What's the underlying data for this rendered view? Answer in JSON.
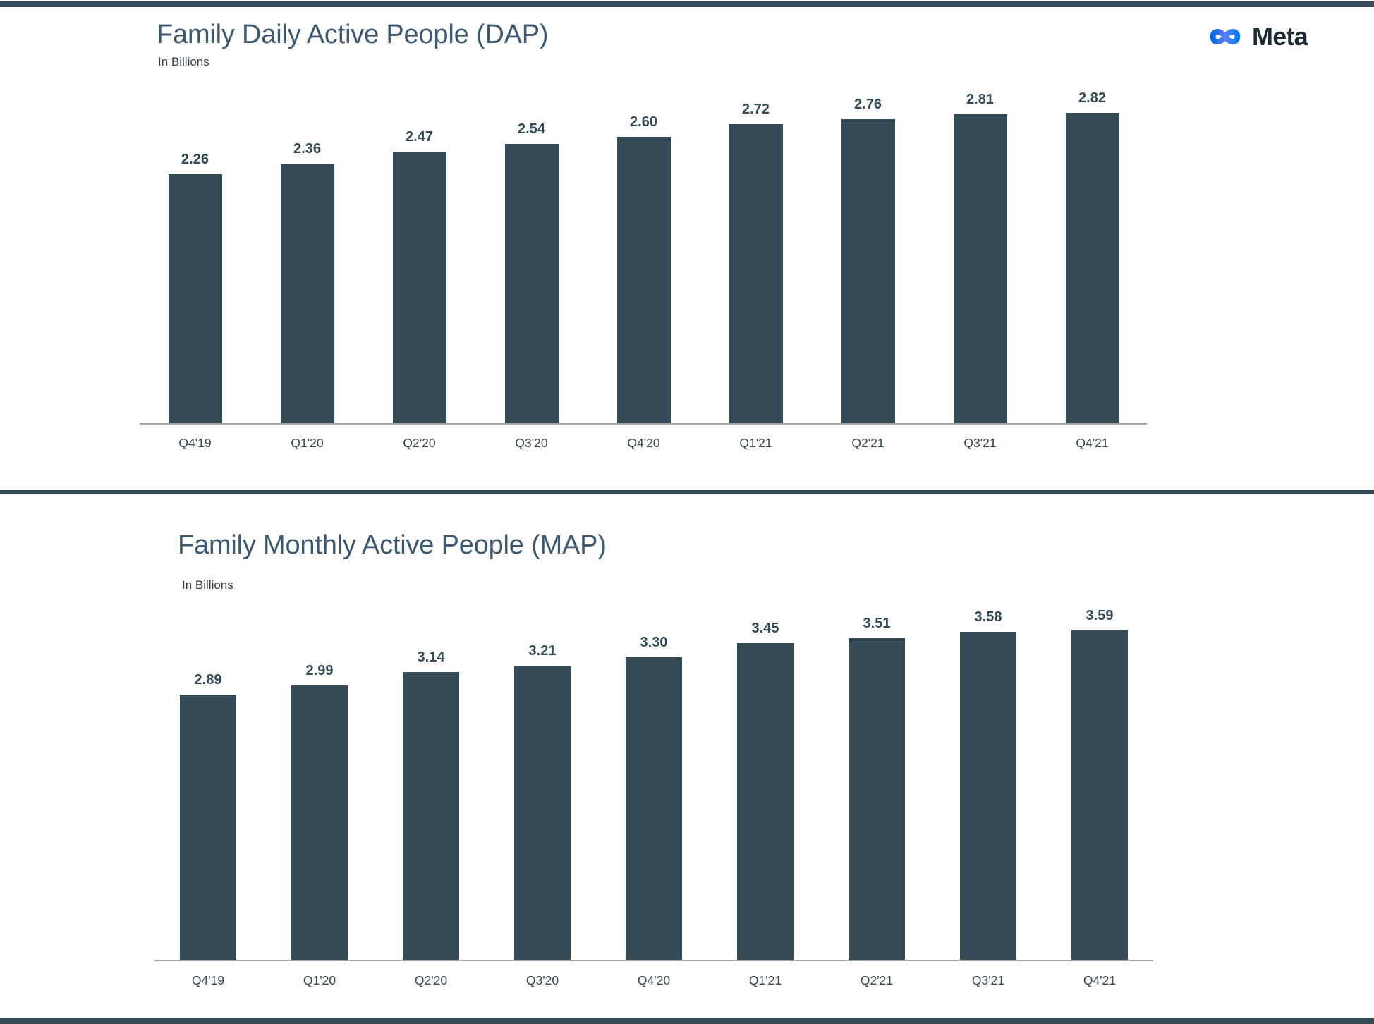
{
  "brand": {
    "name": "Meta",
    "logo_icon": "meta-infinity-icon",
    "logo_gradient": [
      "#0467DF",
      "#5F7EF2",
      "#0A7CF8"
    ],
    "wordmark_color": "#1C2B33"
  },
  "theme": {
    "background": "#FFFFFF",
    "bar_color": "#344A57",
    "title_color": "#3D586F",
    "subtitle_color": "#303C46",
    "label_color": "#37474F",
    "axis_color": "#A6A6A6",
    "rule_color": "#344A57"
  },
  "chart_data": [
    {
      "type": "bar",
      "title": "Family Daily Active People (DAP)",
      "subtitle": "In Billions",
      "categories": [
        "Q4'19",
        "Q1'20",
        "Q2'20",
        "Q3'20",
        "Q4'20",
        "Q1'21",
        "Q2'21",
        "Q3'21",
        "Q4'21"
      ],
      "values": [
        2.26,
        2.36,
        2.47,
        2.54,
        2.6,
        2.72,
        2.76,
        2.81,
        2.82
      ],
      "value_label_decimals": 2,
      "data_labels": "above-bars",
      "xlabel": "",
      "ylabel": "",
      "ylim": [
        0,
        2.9
      ],
      "grid": false,
      "legend": "none"
    },
    {
      "type": "bar",
      "title": "Family Monthly Active People (MAP)",
      "subtitle": "In Billions",
      "categories": [
        "Q4'19",
        "Q1'20",
        "Q2'20",
        "Q3'20",
        "Q4'20",
        "Q1'21",
        "Q2'21",
        "Q3'21",
        "Q4'21"
      ],
      "values": [
        2.89,
        2.99,
        3.14,
        3.21,
        3.3,
        3.45,
        3.51,
        3.58,
        3.59
      ],
      "value_label_decimals": 2,
      "data_labels": "above-bars",
      "xlabel": "",
      "ylabel": "",
      "ylim": [
        0,
        3.7
      ],
      "grid": false,
      "legend": "none"
    }
  ]
}
